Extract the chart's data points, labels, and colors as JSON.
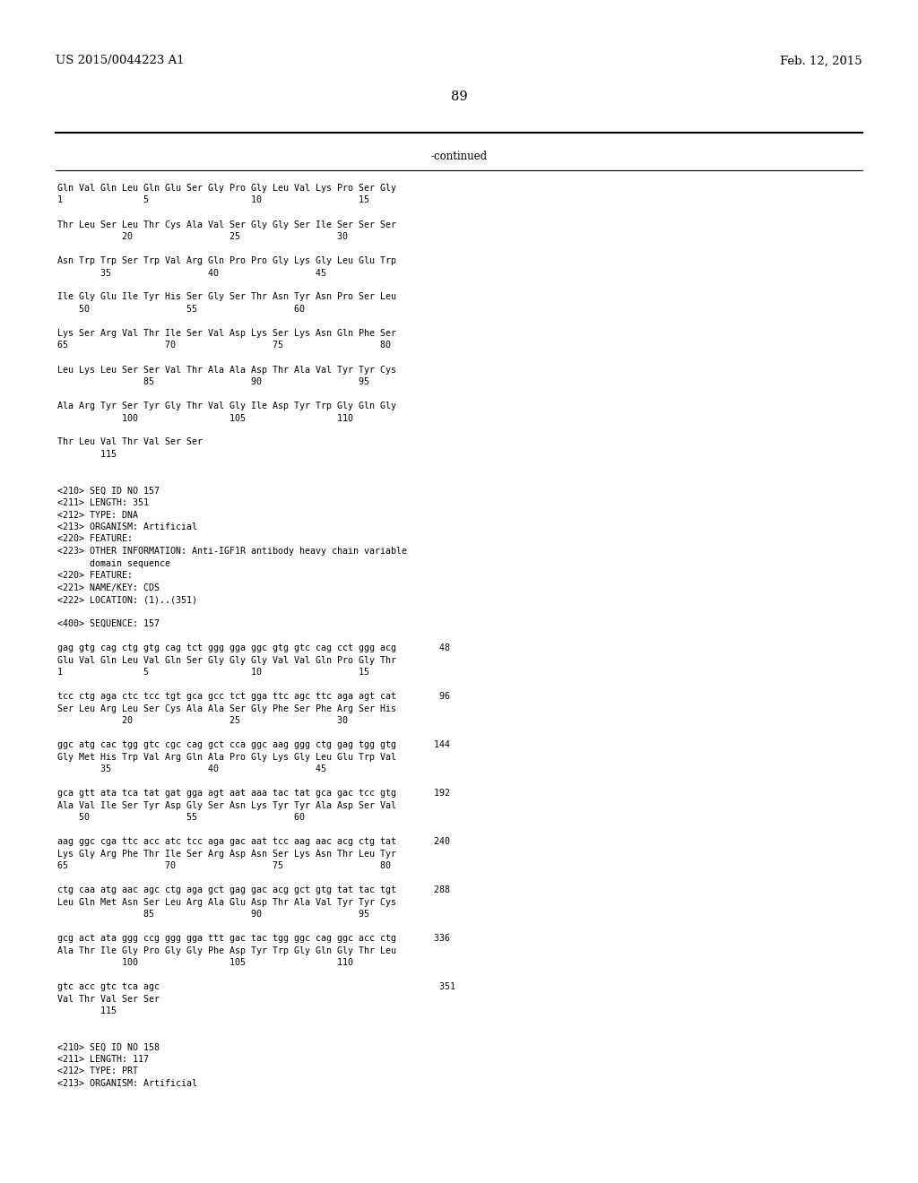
{
  "patent_number": "US 2015/0044223 A1",
  "date": "Feb. 12, 2015",
  "page_number": "89",
  "continued_label": "-continued",
  "background_color": "#ffffff",
  "text_color": "#000000",
  "font_size_header": 9.5,
  "font_size_page": 10.5,
  "mono_fontsize": 7.2,
  "content": [
    "Gln Val Gln Leu Gln Glu Ser Gly Pro Gly Leu Val Lys Pro Ser Gly",
    "1               5                   10                  15",
    "",
    "Thr Leu Ser Leu Thr Cys Ala Val Ser Gly Gly Ser Ile Ser Ser Ser",
    "            20                  25                  30",
    "",
    "Asn Trp Trp Ser Trp Val Arg Gln Pro Pro Gly Lys Gly Leu Glu Trp",
    "        35                  40                  45",
    "",
    "Ile Gly Glu Ile Tyr His Ser Gly Ser Thr Asn Tyr Asn Pro Ser Leu",
    "    50                  55                  60",
    "",
    "Lys Ser Arg Val Thr Ile Ser Val Asp Lys Ser Lys Asn Gln Phe Ser",
    "65                  70                  75                  80",
    "",
    "Leu Lys Leu Ser Ser Val Thr Ala Ala Asp Thr Ala Val Tyr Tyr Cys",
    "                85                  90                  95",
    "",
    "Ala Arg Tyr Ser Tyr Gly Thr Val Gly Ile Asp Tyr Trp Gly Gln Gly",
    "            100                 105                 110",
    "",
    "Thr Leu Val Thr Val Ser Ser",
    "        115",
    "",
    "",
    "<210> SEQ ID NO 157",
    "<211> LENGTH: 351",
    "<212> TYPE: DNA",
    "<213> ORGANISM: Artificial",
    "<220> FEATURE:",
    "<223> OTHER INFORMATION: Anti-IGF1R antibody heavy chain variable",
    "      domain sequence",
    "<220> FEATURE:",
    "<221> NAME/KEY: CDS",
    "<222> LOCATION: (1)..(351)",
    "",
    "<400> SEQUENCE: 157",
    "",
    "gag gtg cag ctg gtg cag tct ggg gga ggc gtg gtc cag cct ggg acg        48",
    "Glu Val Gln Leu Val Gln Ser Gly Gly Gly Val Val Gln Pro Gly Thr",
    "1               5                   10                  15",
    "",
    "tcc ctg aga ctc tcc tgt gca gcc tct gga ttc agc ttc aga agt cat        96",
    "Ser Leu Arg Leu Ser Cys Ala Ala Ser Gly Phe Ser Phe Arg Ser His",
    "            20                  25                  30",
    "",
    "ggc atg cac tgg gtc cgc cag gct cca ggc aag ggg ctg gag tgg gtg       144",
    "Gly Met His Trp Val Arg Gln Ala Pro Gly Lys Gly Leu Glu Trp Val",
    "        35                  40                  45",
    "",
    "gca gtt ata tca tat gat gga agt aat aaa tac tat gca gac tcc gtg       192",
    "Ala Val Ile Ser Tyr Asp Gly Ser Asn Lys Tyr Tyr Ala Asp Ser Val",
    "    50                  55                  60",
    "",
    "aag ggc cga ttc acc atc tcc aga gac aat tcc aag aac acg ctg tat       240",
    "Lys Gly Arg Phe Thr Ile Ser Arg Asp Asn Ser Lys Asn Thr Leu Tyr",
    "65                  70                  75                  80",
    "",
    "ctg caa atg aac agc ctg aga gct gag gac acg gct gtg tat tac tgt       288",
    "Leu Gln Met Asn Ser Leu Arg Ala Glu Asp Thr Ala Val Tyr Tyr Cys",
    "                85                  90                  95",
    "",
    "gcg act ata ggg ccg ggg gga ttt gac tac tgg ggc cag ggc acc ctg       336",
    "Ala Thr Ile Gly Pro Gly Gly Phe Asp Tyr Trp Gly Gln Gly Thr Leu",
    "            100                 105                 110",
    "",
    "gtc acc gtc tca agc                                                    351",
    "Val Thr Val Ser Ser",
    "        115",
    "",
    "",
    "<210> SEQ ID NO 158",
    "<211> LENGTH: 117",
    "<212> TYPE: PRT",
    "<213> ORGANISM: Artificial"
  ]
}
